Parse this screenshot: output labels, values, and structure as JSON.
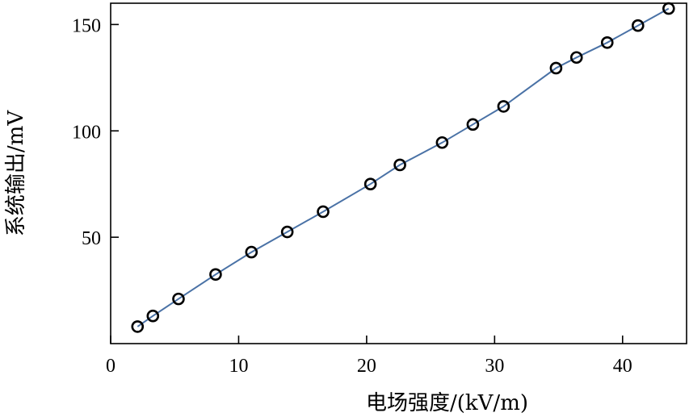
{
  "chart_data": {
    "type": "line",
    "xlabel": "电场强度/(kV/m)",
    "ylabel": "系统输出/mV",
    "xlim": [
      0,
      45
    ],
    "ylim": [
      0,
      160
    ],
    "xticks": [
      0,
      10,
      20,
      30,
      40
    ],
    "yticks": [
      50,
      100,
      150
    ],
    "grid": false,
    "legend": "none",
    "line_color": "#4a72a6",
    "marker": "open-circle",
    "series": [
      {
        "x": [
          2.1,
          3.3,
          5.3,
          8.2,
          11.0,
          13.8,
          16.6,
          20.3,
          22.6,
          25.9,
          28.3,
          30.7,
          34.8,
          36.4,
          38.8,
          41.2,
          43.6
        ],
        "y": [
          8,
          13,
          21,
          32.5,
          43,
          52.5,
          62,
          75,
          84,
          94.5,
          103,
          111.5,
          129.5,
          134.5,
          141.5,
          149.5,
          157.5
        ]
      }
    ]
  }
}
